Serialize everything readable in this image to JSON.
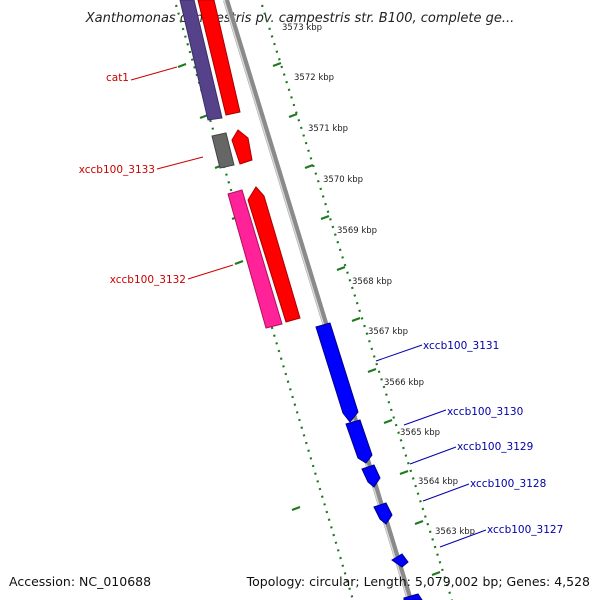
{
  "header": {
    "title": "Xanthomonas campestris pv. campestris str. B100, complete ge..."
  },
  "footer": {
    "accession": "Accession: NC_010688",
    "summary": "Topology: circular; Length: 5,079,002 bp; Genes: 4,528"
  },
  "ticks": [
    {
      "label": "3573 kbp"
    },
    {
      "label": "3572 kbp"
    },
    {
      "label": "3571 kbp"
    },
    {
      "label": "3570 kbp"
    },
    {
      "label": "3569 kbp"
    },
    {
      "label": "3568 kbp"
    },
    {
      "label": "3567 kbp"
    },
    {
      "label": "3566 kbp"
    },
    {
      "label": "3565 kbp"
    },
    {
      "label": "3564 kbp"
    },
    {
      "label": "3563 kbp"
    }
  ],
  "labels_left": [
    {
      "text": "cat1"
    },
    {
      "text": "xccb100_3133"
    },
    {
      "text": "xccb100_3132"
    }
  ],
  "labels_right": [
    {
      "text": "xccb100_3131"
    },
    {
      "text": "xccb100_3130"
    },
    {
      "text": "xccb100_3129"
    },
    {
      "text": "xccb100_3128"
    },
    {
      "text": "xccb100_3127"
    }
  ],
  "colors": {
    "forward_cds": "#ff0000",
    "reverse_cds": "#0000ff",
    "rna_gene": "#ff2299",
    "other_gene": "#55428a",
    "pseudo_gene": "#666666",
    "backbone": "#8a8a8a",
    "tick_green": "#1e7a1e",
    "label_left": "#cc0000",
    "label_right": "#0000aa"
  }
}
